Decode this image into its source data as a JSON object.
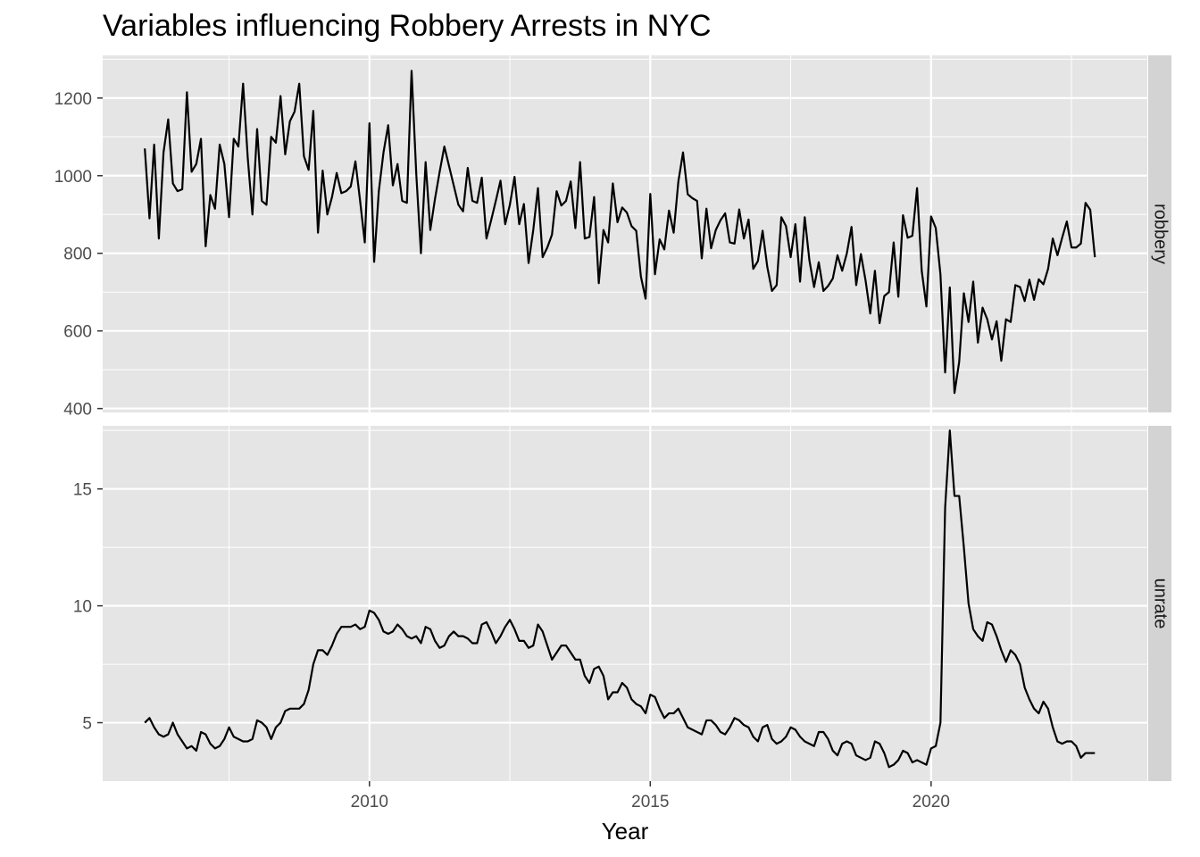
{
  "chart_data": {
    "type": "line",
    "title": "Variables influencing Robbery Arrests in NYC",
    "xlabel": "Year",
    "xlim": [
      2005.25,
      2023.85
    ],
    "x_ticks": [
      2010,
      2015,
      2020
    ],
    "x_tick_labels": [
      "2010",
      "2015",
      "2020"
    ],
    "x_start": 2006.0,
    "x_step": 0.0833333,
    "colors": {
      "panel_bg": "#e5e5e5",
      "grid": "#ffffff",
      "strip_bg": "#d3d3d3",
      "line": "#000000"
    },
    "facets": [
      {
        "strip_label": "robbery",
        "ylim": [
          390,
          1310
        ],
        "y_ticks": [
          400,
          600,
          800,
          1000,
          1200
        ],
        "y_tick_labels": [
          "400",
          "600",
          "800",
          "1000",
          "1200"
        ],
        "values": [
          1070,
          890,
          1080,
          838,
          1060,
          1145,
          980,
          960,
          965,
          1215,
          1010,
          1030,
          1095,
          818,
          950,
          915,
          1080,
          1030,
          893,
          1095,
          1075,
          1237,
          1045,
          900,
          1120,
          935,
          925,
          1100,
          1085,
          1205,
          1055,
          1140,
          1165,
          1237,
          1050,
          1015,
          1167,
          853,
          1013,
          900,
          945,
          1007,
          955,
          960,
          972,
          1037,
          935,
          828,
          1135,
          778,
          960,
          1060,
          1130,
          975,
          1030,
          935,
          930,
          1270,
          1005,
          800,
          1035,
          860,
          940,
          1010,
          1075,
          1025,
          975,
          925,
          908,
          1020,
          935,
          930,
          995,
          838,
          885,
          935,
          987,
          875,
          925,
          997,
          875,
          927,
          775,
          860,
          968,
          790,
          815,
          848,
          960,
          923,
          935,
          985,
          865,
          1035,
          838,
          842,
          945,
          723,
          860,
          828,
          980,
          880,
          918,
          905,
          870,
          858,
          740,
          683,
          953,
          746,
          836,
          810,
          910,
          853,
          985,
          1060,
          952,
          942,
          935,
          787,
          915,
          813,
          860,
          885,
          903,
          828,
          825,
          913,
          838,
          887,
          760,
          780,
          858,
          765,
          703,
          718,
          893,
          870,
          790,
          875,
          727,
          893,
          782,
          713,
          777,
          703,
          716,
          735,
          795,
          755,
          800,
          868,
          718,
          798,
          730,
          645,
          755,
          620,
          690,
          700,
          828,
          688,
          898,
          840,
          845,
          968,
          755,
          663,
          895,
          865,
          745,
          493,
          712,
          440,
          520,
          697,
          623,
          727,
          570,
          660,
          630,
          578,
          625,
          523,
          630,
          623,
          718,
          713,
          677,
          732,
          680,
          733,
          720,
          760,
          838,
          795,
          840,
          882,
          815,
          815,
          825,
          930,
          912,
          790
        ]
      },
      {
        "strip_label": "unrate",
        "ylim": [
          2.5,
          17.7
        ],
        "y_ticks": [
          5,
          10,
          15
        ],
        "y_tick_labels": [
          "5",
          "10",
          "15"
        ],
        "values": [
          5.0,
          5.2,
          4.8,
          4.5,
          4.4,
          4.5,
          5.0,
          4.5,
          4.2,
          3.9,
          4.0,
          3.8,
          4.6,
          4.5,
          4.1,
          3.9,
          4.0,
          4.3,
          4.8,
          4.4,
          4.3,
          4.2,
          4.2,
          4.3,
          5.1,
          5.0,
          4.8,
          4.3,
          4.8,
          5.0,
          5.5,
          5.6,
          5.6,
          5.6,
          5.8,
          6.4,
          7.5,
          8.1,
          8.1,
          7.9,
          8.3,
          8.8,
          9.1,
          9.1,
          9.1,
          9.2,
          9.0,
          9.1,
          9.8,
          9.7,
          9.4,
          8.9,
          8.8,
          8.9,
          9.2,
          9.0,
          8.7,
          8.6,
          8.7,
          8.4,
          9.1,
          9.0,
          8.5,
          8.2,
          8.3,
          8.7,
          8.9,
          8.7,
          8.7,
          8.6,
          8.4,
          8.4,
          9.2,
          9.3,
          8.9,
          8.4,
          8.7,
          9.1,
          9.4,
          9.0,
          8.5,
          8.5,
          8.2,
          8.3,
          9.2,
          8.9,
          8.3,
          7.7,
          8.0,
          8.3,
          8.3,
          8.0,
          7.7,
          7.7,
          7.0,
          6.7,
          7.3,
          7.4,
          7.0,
          6.0,
          6.3,
          6.3,
          6.7,
          6.5,
          6.0,
          5.8,
          5.7,
          5.4,
          6.2,
          6.1,
          5.6,
          5.2,
          5.4,
          5.4,
          5.6,
          5.2,
          4.8,
          4.7,
          4.6,
          4.5,
          5.1,
          5.1,
          4.9,
          4.6,
          4.5,
          4.8,
          5.2,
          5.1,
          4.9,
          4.8,
          4.4,
          4.2,
          4.8,
          4.9,
          4.3,
          4.1,
          4.2,
          4.4,
          4.8,
          4.7,
          4.4,
          4.2,
          4.1,
          4.0,
          4.6,
          4.6,
          4.3,
          3.8,
          3.6,
          4.1,
          4.2,
          4.1,
          3.6,
          3.5,
          3.4,
          3.5,
          4.2,
          4.1,
          3.7,
          3.1,
          3.2,
          3.4,
          3.8,
          3.7,
          3.3,
          3.4,
          3.3,
          3.2,
          3.9,
          4.0,
          5.0,
          14.2,
          17.5,
          14.7,
          14.7,
          12.5,
          10.1,
          9.0,
          8.7,
          8.5,
          9.3,
          9.2,
          8.7,
          8.1,
          7.6,
          8.1,
          7.9,
          7.5,
          6.5,
          6.0,
          5.6,
          5.4,
          5.9,
          5.6,
          4.8,
          4.2,
          4.1,
          4.2,
          4.2,
          4.0,
          3.5,
          3.7,
          3.7,
          3.7
        ]
      }
    ]
  }
}
